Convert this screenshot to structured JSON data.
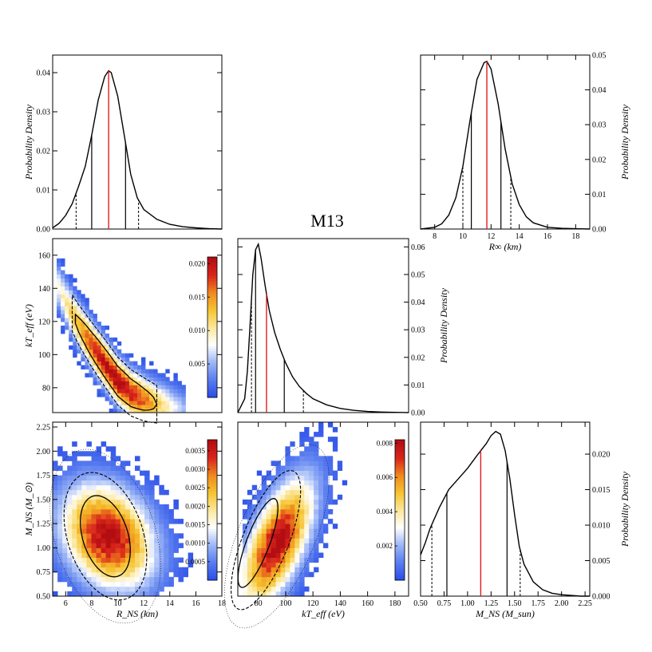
{
  "figure": {
    "title": "M13",
    "colors": {
      "curve": "#000000",
      "median": "#e11d1d",
      "frame": "#000000"
    },
    "colormap": [
      "#2b4fe8",
      "#5b7ef0",
      "#9fb8f6",
      "#ffffff",
      "#fbe79a",
      "#f6c431",
      "#f08a1d",
      "#d9261c",
      "#b30d12"
    ]
  },
  "chart_data": [
    {
      "id": "rns_marginal",
      "type": "line",
      "title": "",
      "xlabel": "",
      "ylabel": "Probability Density",
      "ylabel_side": "left",
      "xlim": [
        5,
        18
      ],
      "ylim": [
        0,
        0.0445
      ],
      "xticks": [],
      "yticks": [
        0,
        0.01,
        0.02,
        0.03,
        0.04
      ],
      "ytick_labels": [
        "0.00",
        "0.01",
        "0.02",
        "0.03",
        "0.04"
      ],
      "x": [
        5,
        5.5,
        6,
        6.5,
        7,
        7.5,
        8,
        8.5,
        9,
        9.3,
        9.5,
        10,
        10.5,
        11,
        11.5,
        12,
        13,
        14,
        15,
        16,
        17,
        18
      ],
      "y": [
        0.0003,
        0.0015,
        0.0035,
        0.0065,
        0.011,
        0.016,
        0.024,
        0.033,
        0.039,
        0.0405,
        0.04,
        0.034,
        0.024,
        0.014,
        0.008,
        0.005,
        0.0025,
        0.0012,
        0.0006,
        0.0003,
        0.0001,
        0.0
      ],
      "median": 9.3,
      "intervals_1sigma": [
        8.0,
        10.6
      ],
      "intervals_2sigma": [
        6.8,
        11.6
      ]
    },
    {
      "id": "rinf_marginal",
      "type": "line",
      "title": "",
      "xlabel": "R∞ (km)",
      "ylabel": "Probability Density",
      "ylabel_side": "right",
      "xlim": [
        7,
        19
      ],
      "ylim": [
        0,
        0.05
      ],
      "xticks": [
        8,
        10,
        12,
        14,
        16,
        18
      ],
      "xtick_labels": [
        "8",
        "10",
        "12",
        "14",
        "16",
        "18"
      ],
      "yticks": [
        0,
        0.01,
        0.02,
        0.03,
        0.04,
        0.05
      ],
      "ytick_labels": [
        "0.00",
        "0.01",
        "0.02",
        "0.03",
        "0.04",
        "0.05"
      ],
      "x": [
        7,
        8,
        8.5,
        9,
        9.5,
        10,
        10.5,
        11,
        11.5,
        11.7,
        12,
        12.5,
        13,
        13.5,
        14,
        14.5,
        15,
        16,
        17,
        18,
        19
      ],
      "y": [
        0.0,
        0.0005,
        0.0015,
        0.004,
        0.009,
        0.018,
        0.031,
        0.043,
        0.0478,
        0.0482,
        0.046,
        0.036,
        0.023,
        0.013,
        0.007,
        0.0035,
        0.0018,
        0.0005,
        0.0002,
        0.0001,
        0.0
      ],
      "median": 11.7,
      "intervals_1sigma": [
        10.6,
        12.7
      ],
      "intervals_2sigma": [
        10.0,
        13.4
      ]
    },
    {
      "id": "kt_vs_rns",
      "type": "heatmap",
      "title": "",
      "xlabel": "",
      "ylabel": "kT_eff (eV)",
      "xlim": [
        5,
        18
      ],
      "ylim": [
        65,
        170
      ],
      "yticks": [
        80,
        100,
        120,
        140,
        160
      ],
      "ytick_labels": [
        "80",
        "100",
        "120",
        "140",
        "160"
      ],
      "ridge_x": [
        5,
        6,
        7,
        8,
        9,
        10,
        11,
        12,
        13,
        14,
        15
      ],
      "ridge_y": [
        148,
        132,
        118,
        106,
        95,
        84,
        77,
        73,
        70,
        68,
        66
      ],
      "peak": [
        9.8,
        81
      ],
      "colorbar": {
        "min": 0,
        "max": 0.021,
        "ticks": [
          0.005,
          0.01,
          0.015,
          0.02
        ],
        "tick_labels": [
          "0.005",
          "0.010",
          "0.015",
          "0.020"
        ]
      }
    },
    {
      "id": "kt_marginal",
      "type": "line",
      "title": "",
      "xlabel": "",
      "ylabel": "Probability Density",
      "ylabel_side": "right",
      "xlim": [
        65,
        190
      ],
      "ylim": [
        0,
        0.063
      ],
      "xticks": [],
      "yticks": [
        0,
        0.01,
        0.02,
        0.03,
        0.04,
        0.05,
        0.06
      ],
      "ytick_labels": [
        "0.00",
        "0.01",
        "0.02",
        "0.03",
        "0.04",
        "0.05",
        "0.06"
      ],
      "x": [
        65,
        70,
        72,
        74,
        76,
        78,
        80,
        82,
        85,
        88,
        92,
        96,
        100,
        105,
        110,
        115,
        120,
        130,
        140,
        150,
        160,
        170,
        180,
        190
      ],
      "y": [
        0.0,
        0.005,
        0.015,
        0.032,
        0.05,
        0.059,
        0.061,
        0.056,
        0.046,
        0.037,
        0.029,
        0.023,
        0.018,
        0.013,
        0.0095,
        0.007,
        0.005,
        0.0028,
        0.0015,
        0.0008,
        0.0004,
        0.0002,
        0.0001,
        0.0
      ],
      "median": 86,
      "intervals_1sigma": [
        78,
        99
      ],
      "intervals_2sigma": [
        75,
        113
      ]
    },
    {
      "id": "mns_vs_rns",
      "type": "heatmap",
      "title": "",
      "xlabel": "R_NS (km)",
      "ylabel": "M_NS (M_⊙)",
      "xlim": [
        5,
        18
      ],
      "ylim": [
        0.5,
        2.3
      ],
      "xticks": [
        6,
        8,
        10,
        12,
        14,
        16,
        18
      ],
      "xtick_labels": [
        "6",
        "8",
        "10",
        "12",
        "14",
        "16",
        "18"
      ],
      "yticks": [
        0.5,
        0.75,
        1.0,
        1.25,
        1.5,
        1.75,
        2.0,
        2.25
      ],
      "ytick_labels": [
        "0.50",
        "0.75",
        "1.00",
        "1.25",
        "1.50",
        "1.75",
        "2.00",
        "2.25"
      ],
      "peak": [
        9.2,
        1.15
      ],
      "colorbar": {
        "min": 0,
        "max": 0.0038,
        "ticks": [
          0.0005,
          0.001,
          0.0015,
          0.002,
          0.0025,
          0.003,
          0.0035
        ],
        "tick_labels": [
          "0.0005",
          "0.0010",
          "0.0015",
          "0.0020",
          "0.0025",
          "0.0030",
          "0.0035"
        ]
      }
    },
    {
      "id": "mns_vs_kt",
      "type": "heatmap",
      "title": "",
      "xlabel": "kT_eff (eV)",
      "ylabel": "",
      "xlim": [
        65,
        190
      ],
      "ylim": [
        0.5,
        2.3
      ],
      "xticks": [
        80,
        100,
        120,
        140,
        160,
        180
      ],
      "xtick_labels": [
        "80",
        "100",
        "120",
        "140",
        "160",
        "180"
      ],
      "peak": [
        81,
        1.0
      ],
      "colorbar": {
        "min": 0,
        "max": 0.0082,
        "ticks": [
          0.002,
          0.004,
          0.006,
          0.008
        ],
        "tick_labels": [
          "0.002",
          "0.004",
          "0.006",
          "0.008"
        ]
      }
    },
    {
      "id": "mns_marginal",
      "type": "line",
      "title": "",
      "xlabel": "M_NS (M_sun)",
      "ylabel": "Probability Density",
      "ylabel_side": "right",
      "xlim": [
        0.5,
        2.3
      ],
      "ylim": [
        0,
        0.0245
      ],
      "xticks": [
        0.5,
        0.75,
        1.0,
        1.25,
        1.5,
        1.75,
        2.0,
        2.25
      ],
      "xtick_labels": [
        "0.50",
        "0.75",
        "1.00",
        "1.25",
        "1.50",
        "1.75",
        "2.00",
        "2.25"
      ],
      "yticks": [
        0,
        0.005,
        0.01,
        0.015,
        0.02
      ],
      "ytick_labels": [
        "0.000",
        "0.005",
        "0.010",
        "0.015",
        "0.020"
      ],
      "x": [
        0.5,
        0.55,
        0.6,
        0.7,
        0.8,
        0.9,
        1.0,
        1.1,
        1.2,
        1.25,
        1.3,
        1.35,
        1.4,
        1.45,
        1.5,
        1.55,
        1.6,
        1.7,
        1.8,
        1.9,
        2.0,
        2.1,
        2.2,
        2.3
      ],
      "y": [
        0.0058,
        0.0075,
        0.0095,
        0.0125,
        0.015,
        0.0165,
        0.018,
        0.0198,
        0.0215,
        0.0226,
        0.0232,
        0.0228,
        0.0205,
        0.0165,
        0.0115,
        0.007,
        0.0045,
        0.002,
        0.0009,
        0.0004,
        0.0002,
        0.0001,
        0.0,
        0.0
      ],
      "median": 1.14,
      "intervals_1sigma": [
        0.78,
        1.42
      ],
      "intervals_2sigma": [
        0.62,
        1.56
      ]
    }
  ]
}
